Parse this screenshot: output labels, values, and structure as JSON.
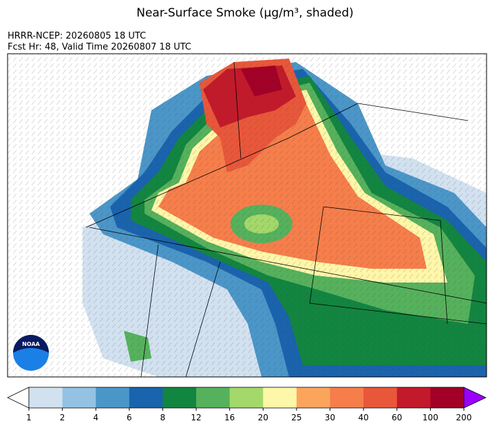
{
  "header": {
    "title": "Near-Surface Smoke (µg/m³, shaded)",
    "line1": "HRRR-NCEP: 20260805 18 UTC",
    "line2": "Fcst Hr: 48, Valid Time 20260807 18 UTC"
  },
  "logo_text": "NOAA",
  "colorbar": {
    "ticks": [
      1,
      2,
      4,
      6,
      8,
      12,
      16,
      20,
      25,
      30,
      40,
      60,
      100,
      200
    ],
    "colors": [
      "#d2e1f0",
      "#94c2e2",
      "#4b96c8",
      "#1a63ad",
      "#128540",
      "#56b15c",
      "#a3d86a",
      "#fef6a9",
      "#fba55c",
      "#f67e4b",
      "#e8573a",
      "#c21a2a",
      "#a20026"
    ],
    "under_color": "#ffffff",
    "over_color": "#9b00ff"
  }
}
